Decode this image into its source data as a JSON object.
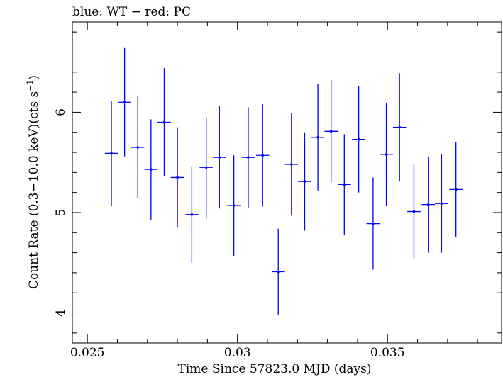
{
  "chart_data": {
    "type": "scatter",
    "title": "blue: WT − red: PC",
    "xlabel": "Time Since 57823.0 MJD (days)",
    "ylabel_main": "Count Rate (0.3−10.0 keV)(cts s",
    "ylabel_sup": "−1",
    "ylabel_end": ")",
    "xlim": [
      0.0245,
      0.0388
    ],
    "ylim": [
      3.7,
      6.9
    ],
    "x_ticks": [
      {
        "value": 0.025,
        "label": "0.025"
      },
      {
        "value": 0.03,
        "label": "0.03"
      },
      {
        "value": 0.035,
        "label": "0.035"
      }
    ],
    "y_ticks": [
      {
        "value": 4,
        "label": "4"
      },
      {
        "value": 5,
        "label": "5"
      },
      {
        "value": 6,
        "label": "6"
      }
    ],
    "series": [
      {
        "color": "#0000ff",
        "x_half_width": 0.00022,
        "points": [
          {
            "x": 0.0258,
            "y": 5.59,
            "err": 0.52
          },
          {
            "x": 0.02624,
            "y": 6.1,
            "err": 0.54
          },
          {
            "x": 0.02668,
            "y": 5.65,
            "err": 0.51
          },
          {
            "x": 0.02712,
            "y": 5.43,
            "err": 0.5
          },
          {
            "x": 0.02756,
            "y": 5.9,
            "err": 0.54
          },
          {
            "x": 0.028,
            "y": 5.35,
            "err": 0.5
          },
          {
            "x": 0.02848,
            "y": 4.98,
            "err": 0.48
          },
          {
            "x": 0.02896,
            "y": 5.45,
            "err": 0.5
          },
          {
            "x": 0.0294,
            "y": 5.55,
            "err": 0.51
          },
          {
            "x": 0.02988,
            "y": 5.07,
            "err": 0.5
          },
          {
            "x": 0.03036,
            "y": 5.55,
            "err": 0.5
          },
          {
            "x": 0.03084,
            "y": 5.57,
            "err": 0.51
          },
          {
            "x": 0.03136,
            "y": 4.41,
            "err": 0.43
          },
          {
            "x": 0.0318,
            "y": 5.48,
            "err": 0.51
          },
          {
            "x": 0.03224,
            "y": 5.31,
            "err": 0.49
          },
          {
            "x": 0.03268,
            "y": 5.75,
            "err": 0.53
          },
          {
            "x": 0.03312,
            "y": 5.81,
            "err": 0.51
          },
          {
            "x": 0.03356,
            "y": 5.28,
            "err": 0.5
          },
          {
            "x": 0.03404,
            "y": 5.73,
            "err": 0.53
          },
          {
            "x": 0.03452,
            "y": 4.89,
            "err": 0.46
          },
          {
            "x": 0.03496,
            "y": 5.58,
            "err": 0.51
          },
          {
            "x": 0.0354,
            "y": 5.85,
            "err": 0.54
          },
          {
            "x": 0.03588,
            "y": 5.01,
            "err": 0.47
          },
          {
            "x": 0.03636,
            "y": 5.08,
            "err": 0.48
          },
          {
            "x": 0.0368,
            "y": 5.09,
            "err": 0.49
          },
          {
            "x": 0.03728,
            "y": 5.23,
            "err": 0.47
          }
        ]
      }
    ]
  }
}
